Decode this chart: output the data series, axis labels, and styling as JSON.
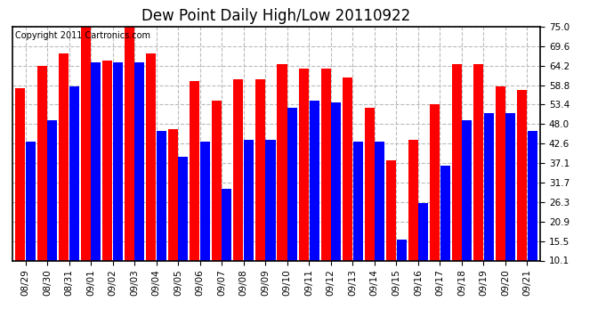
{
  "title": "Dew Point Daily High/Low 20110922",
  "copyright": "Copyright 2011 Cartronics.com",
  "dates": [
    "08/29",
    "08/30",
    "08/31",
    "09/01",
    "09/02",
    "09/03",
    "09/04",
    "09/05",
    "09/06",
    "09/07",
    "09/08",
    "09/09",
    "09/10",
    "09/11",
    "09/12",
    "09/13",
    "09/14",
    "09/15",
    "09/16",
    "09/17",
    "09/18",
    "09/19",
    "09/20",
    "09/21"
  ],
  "highs": [
    58.0,
    64.0,
    67.5,
    75.0,
    65.5,
    75.0,
    67.5,
    46.5,
    60.0,
    54.5,
    60.5,
    60.5,
    64.5,
    63.5,
    63.5,
    61.0,
    52.5,
    38.0,
    43.5,
    53.5,
    64.5,
    64.5,
    58.5,
    57.5
  ],
  "lows": [
    43.0,
    49.0,
    58.5,
    65.0,
    65.0,
    65.0,
    46.0,
    39.0,
    43.0,
    30.0,
    43.5,
    43.5,
    52.5,
    54.5,
    54.0,
    43.0,
    43.0,
    16.0,
    26.0,
    36.5,
    49.0,
    51.0,
    51.0,
    46.0
  ],
  "yticks": [
    10.1,
    15.5,
    20.9,
    26.3,
    31.7,
    37.1,
    42.6,
    48.0,
    53.4,
    58.8,
    64.2,
    69.6,
    75.0
  ],
  "ymin": 10.1,
  "ymax": 75.0,
  "bar_color_high": "#ff0000",
  "bar_color_low": "#0000ff",
  "background_color": "#ffffff",
  "grid_color": "#bbbbbb",
  "title_fontsize": 12,
  "tick_fontsize": 7.5,
  "copyright_fontsize": 7
}
